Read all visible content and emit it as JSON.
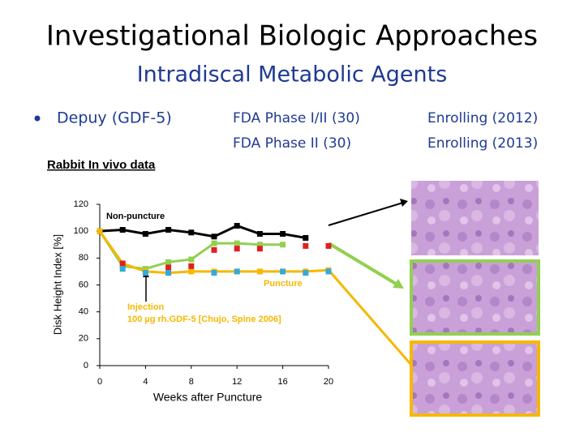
{
  "slide": {
    "title": "Investigational Biologic Approaches",
    "subtitle": "Intradiscal Metabolic Agents",
    "bullet": "Depuy (GDF-5)",
    "trials": [
      [
        "FDA Phase I/II (30)",
        "Enrolling (2012)"
      ],
      [
        "FDA Phase II (30)",
        "Enrolling (2013)"
      ]
    ],
    "section": "Rabbit In vivo data"
  },
  "chart_data": {
    "type": "line",
    "x_label": "Weeks after Puncture",
    "y_label": "Disk Height Index [%]",
    "xlim": [
      0,
      20
    ],
    "xticks": [
      0,
      4,
      8,
      12,
      16,
      20
    ],
    "ylim": [
      0,
      120
    ],
    "yticks": [
      0,
      20,
      40,
      60,
      80,
      100,
      120
    ],
    "annotations": [
      "Injection",
      "100 µg rh.GDF-5 [Chujo, Spine 2006]"
    ],
    "series": [
      {
        "name": "Non-puncture",
        "color": "#000000",
        "markers_only": false,
        "x": [
          0,
          2,
          4,
          6,
          8,
          10,
          12,
          14,
          16,
          18
        ],
        "values": [
          100,
          101,
          98,
          101,
          99,
          96,
          104,
          98,
          98,
          95
        ]
      },
      {
        "color": "#92d050",
        "markers_only": false,
        "x": [
          0,
          2,
          4,
          6,
          8,
          10,
          12,
          14,
          16
        ],
        "values": [
          100,
          74,
          72,
          77,
          79,
          91,
          91,
          90,
          90
        ]
      },
      {
        "name": "Puncture",
        "color": "#f5b800",
        "markers_only": false,
        "x": [
          0,
          2,
          4,
          6,
          8,
          10,
          12,
          14,
          16,
          18,
          20
        ],
        "values": [
          100,
          76,
          70,
          69,
          70,
          70,
          70,
          70,
          70,
          70,
          71
        ]
      },
      {
        "color": "#e02020",
        "markers_only": true,
        "x": [
          2,
          6,
          8,
          10,
          12,
          14,
          18,
          20
        ],
        "values": [
          76,
          73,
          74,
          86,
          87,
          87,
          89,
          89
        ]
      },
      {
        "color": "#33aadd",
        "markers_only": true,
        "x": [
          2,
          4,
          6,
          10,
          12,
          16,
          18,
          20
        ],
        "values": [
          72,
          69,
          69,
          69,
          70,
          70,
          69,
          70
        ]
      }
    ]
  }
}
